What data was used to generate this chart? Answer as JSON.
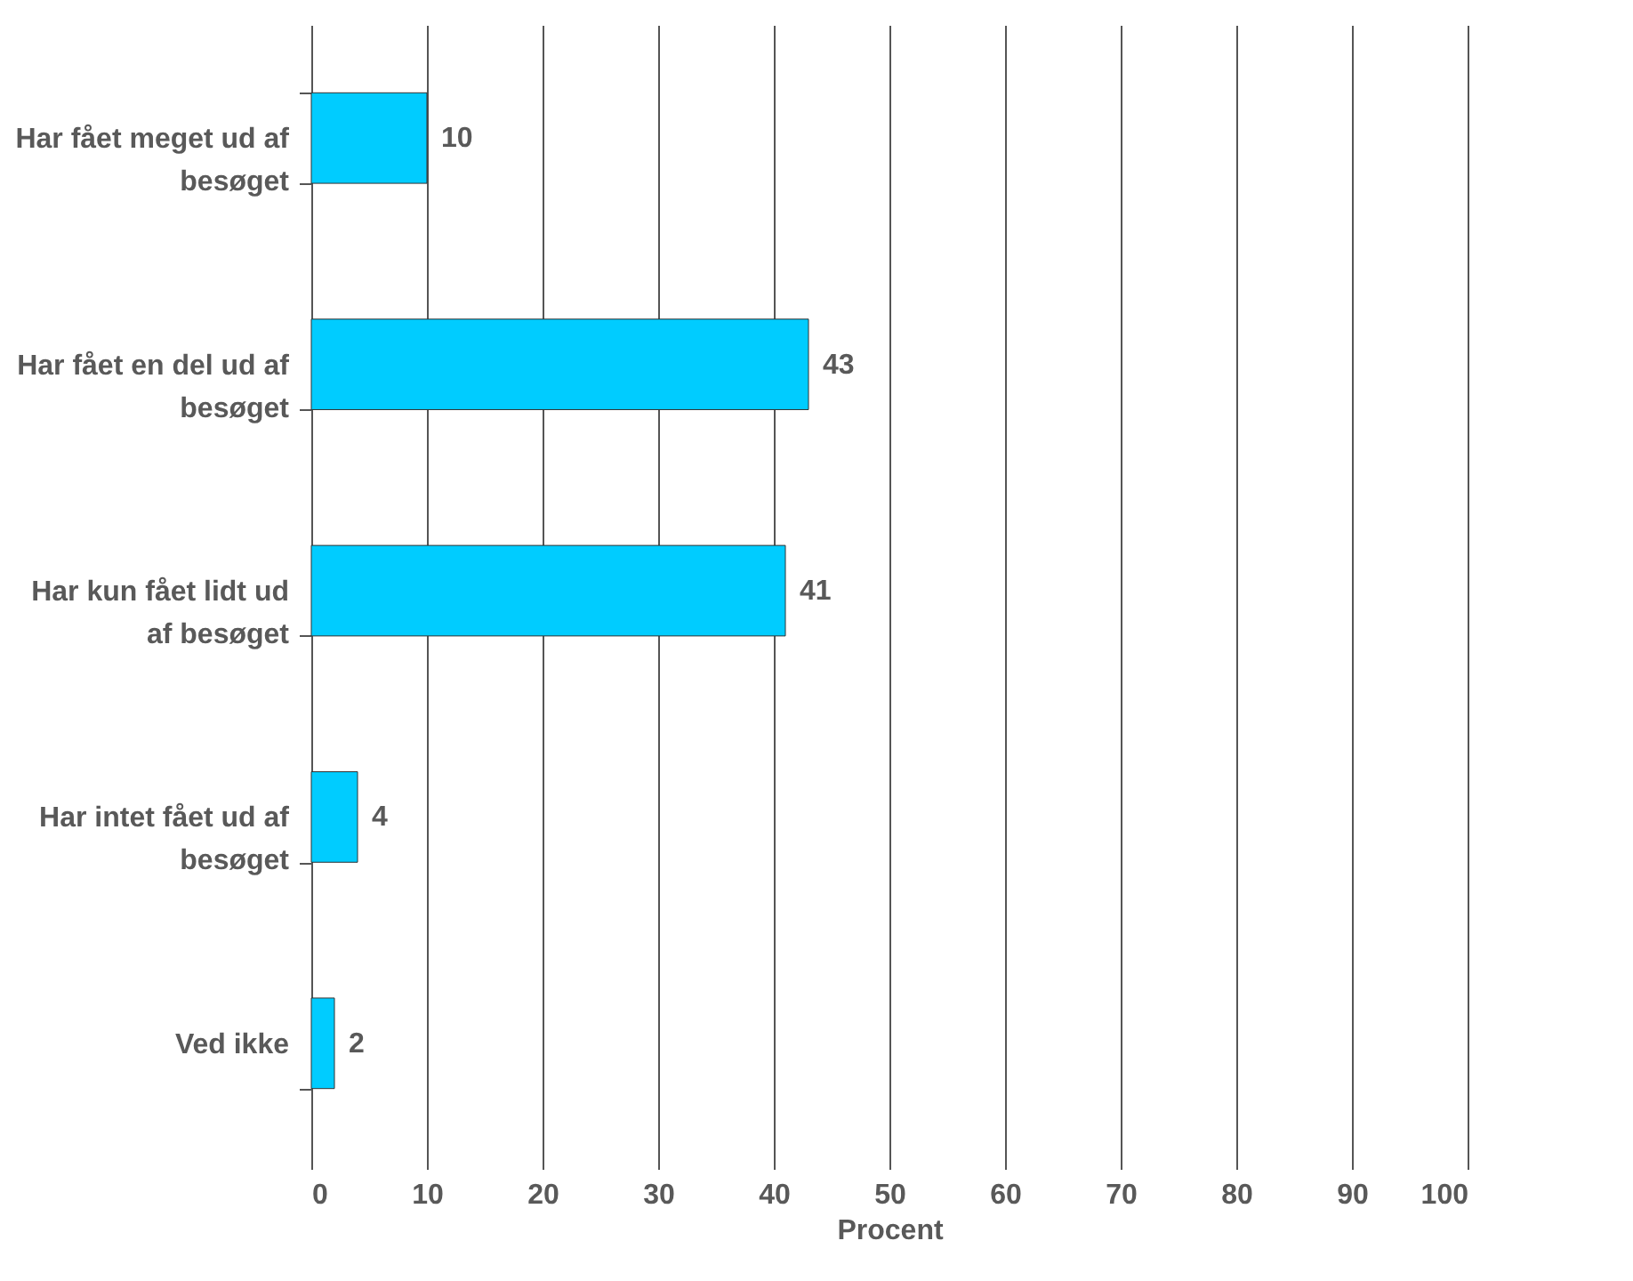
{
  "chart_data": {
    "type": "bar",
    "orientation": "horizontal",
    "xlabel": "Procent",
    "categories": [
      "Har fået meget ud af besøget",
      "Har fået en del ud af besøget",
      "Har kun fået lidt ud af besøget",
      "Har intet fået ud af besøget",
      "Ved ikke"
    ],
    "values": [
      10,
      43,
      41,
      4,
      2
    ],
    "color": "#00ccff",
    "data_labels": true,
    "xlim": [
      0,
      100
    ],
    "xticks": [
      0,
      10,
      20,
      30,
      40,
      50,
      60,
      70,
      80,
      90,
      100
    ],
    "grid": "x"
  }
}
